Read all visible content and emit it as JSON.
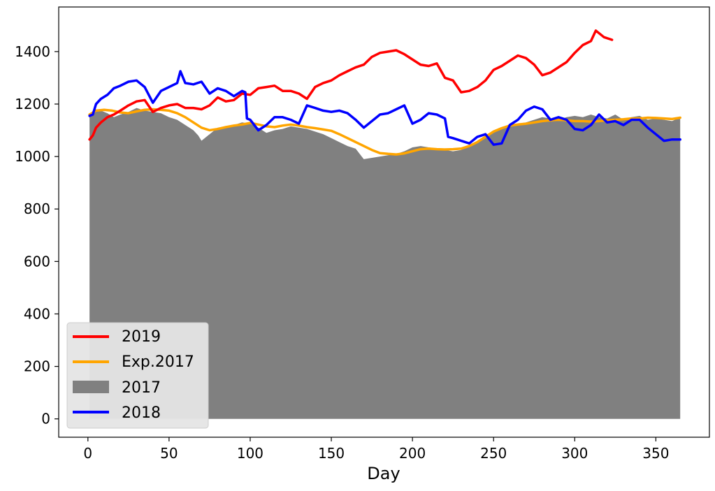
{
  "chart_data": {
    "type": "line",
    "title": "",
    "xlabel": "Day",
    "ylabel": "",
    "xlim": [
      -18,
      383
    ],
    "ylim": [
      -70,
      1570
    ],
    "x_ticks": [
      0,
      50,
      100,
      150,
      200,
      250,
      300,
      350
    ],
    "y_ticks": [
      0,
      200,
      400,
      600,
      800,
      1000,
      1200,
      1400
    ],
    "grid": false,
    "legend_position": "lower-left",
    "series": [
      {
        "name": "2017",
        "kind": "area",
        "color": "#808080",
        "x": [
          1,
          3,
          5,
          8,
          12,
          16,
          20,
          25,
          30,
          35,
          40,
          45,
          50,
          55,
          60,
          65,
          68,
          70,
          72,
          75,
          80,
          85,
          90,
          95,
          100,
          105,
          110,
          115,
          120,
          125,
          130,
          135,
          140,
          145,
          150,
          155,
          160,
          165,
          170,
          175,
          180,
          185,
          190,
          195,
          200,
          205,
          210,
          215,
          220,
          225,
          230,
          235,
          240,
          245,
          250,
          255,
          260,
          265,
          270,
          275,
          280,
          285,
          290,
          295,
          300,
          305,
          310,
          315,
          320,
          325,
          330,
          335,
          340,
          345,
          350,
          355,
          360,
          365
        ],
        "values": [
          1150,
          1165,
          1180,
          1175,
          1165,
          1150,
          1160,
          1170,
          1185,
          1175,
          1170,
          1165,
          1150,
          1140,
          1120,
          1100,
          1080,
          1060,
          1070,
          1085,
          1110,
          1115,
          1120,
          1130,
          1125,
          1110,
          1090,
          1100,
          1105,
          1115,
          1110,
          1105,
          1095,
          1085,
          1070,
          1055,
          1040,
          1030,
          990,
          995,
          1000,
          1005,
          1010,
          1020,
          1035,
          1040,
          1035,
          1030,
          1025,
          1020,
          1025,
          1040,
          1060,
          1080,
          1100,
          1110,
          1120,
          1125,
          1130,
          1140,
          1150,
          1145,
          1140,
          1150,
          1155,
          1150,
          1160,
          1150,
          1145,
          1160,
          1140,
          1150,
          1155,
          1140,
          1145,
          1140,
          1135,
          1150
        ]
      },
      {
        "name": "Exp.2017",
        "kind": "line",
        "color": "#ffa500",
        "x": [
          1,
          5,
          10,
          15,
          20,
          25,
          30,
          35,
          40,
          45,
          50,
          55,
          60,
          65,
          70,
          75,
          80,
          85,
          90,
          95,
          100,
          105,
          110,
          115,
          120,
          125,
          130,
          135,
          140,
          145,
          150,
          155,
          160,
          165,
          170,
          175,
          180,
          185,
          190,
          195,
          200,
          205,
          210,
          215,
          220,
          225,
          230,
          235,
          240,
          245,
          250,
          255,
          260,
          265,
          270,
          275,
          280,
          285,
          290,
          295,
          300,
          305,
          310,
          315,
          320,
          325,
          330,
          335,
          340,
          345,
          350,
          355,
          360,
          365
        ],
        "values": [
          1160,
          1175,
          1178,
          1175,
          1168,
          1165,
          1172,
          1178,
          1180,
          1178,
          1175,
          1165,
          1150,
          1130,
          1110,
          1100,
          1105,
          1112,
          1118,
          1122,
          1128,
          1122,
          1115,
          1112,
          1118,
          1122,
          1118,
          1112,
          1108,
          1103,
          1098,
          1085,
          1070,
          1055,
          1040,
          1025,
          1013,
          1010,
          1008,
          1012,
          1020,
          1028,
          1030,
          1028,
          1027,
          1028,
          1030,
          1040,
          1055,
          1075,
          1095,
          1108,
          1118,
          1122,
          1125,
          1130,
          1135,
          1138,
          1140,
          1138,
          1135,
          1135,
          1133,
          1135,
          1138,
          1140,
          1142,
          1145,
          1145,
          1148,
          1147,
          1145,
          1143,
          1148
        ]
      },
      {
        "name": "2019",
        "kind": "line",
        "color": "#ff0000",
        "x": [
          1,
          3,
          5,
          8,
          12,
          16,
          20,
          25,
          30,
          35,
          40,
          45,
          50,
          55,
          60,
          65,
          70,
          75,
          80,
          85,
          90,
          95,
          100,
          105,
          110,
          115,
          120,
          125,
          130,
          135,
          140,
          145,
          150,
          155,
          160,
          165,
          170,
          175,
          180,
          185,
          190,
          195,
          200,
          205,
          210,
          215,
          220,
          225,
          230,
          235,
          240,
          245,
          250,
          255,
          260,
          265,
          270,
          275,
          280,
          285,
          290,
          295,
          300,
          305,
          310,
          313,
          318,
          323
        ],
        "values": [
          1065,
          1080,
          1110,
          1130,
          1150,
          1160,
          1175,
          1195,
          1210,
          1215,
          1170,
          1185,
          1195,
          1200,
          1185,
          1185,
          1180,
          1195,
          1225,
          1210,
          1215,
          1240,
          1235,
          1260,
          1265,
          1270,
          1250,
          1250,
          1240,
          1220,
          1265,
          1280,
          1290,
          1310,
          1325,
          1340,
          1350,
          1380,
          1395,
          1400,
          1405,
          1390,
          1370,
          1350,
          1345,
          1355,
          1300,
          1290,
          1245,
          1250,
          1265,
          1290,
          1330,
          1345,
          1365,
          1385,
          1375,
          1350,
          1310,
          1320,
          1340,
          1360,
          1395,
          1425,
          1440,
          1480,
          1455,
          1445
        ]
      },
      {
        "name": "2018",
        "kind": "line",
        "color": "#0000ff",
        "x": [
          1,
          3,
          5,
          8,
          12,
          16,
          20,
          25,
          30,
          35,
          40,
          45,
          50,
          55,
          57,
          60,
          65,
          70,
          75,
          80,
          85,
          90,
          95,
          97,
          98,
          100,
          105,
          110,
          115,
          120,
          125,
          130,
          135,
          140,
          145,
          150,
          155,
          160,
          165,
          170,
          175,
          180,
          185,
          190,
          195,
          200,
          205,
          210,
          215,
          220,
          222,
          225,
          230,
          235,
          240,
          245,
          250,
          255,
          260,
          265,
          270,
          275,
          280,
          285,
          290,
          295,
          300,
          305,
          310,
          315,
          320,
          325,
          330,
          335,
          340,
          345,
          350,
          355,
          360,
          365
        ],
        "values": [
          1155,
          1160,
          1200,
          1220,
          1235,
          1260,
          1270,
          1285,
          1290,
          1265,
          1205,
          1250,
          1265,
          1280,
          1325,
          1280,
          1275,
          1285,
          1240,
          1260,
          1250,
          1230,
          1250,
          1245,
          1145,
          1140,
          1100,
          1120,
          1150,
          1150,
          1140,
          1125,
          1195,
          1185,
          1175,
          1170,
          1175,
          1165,
          1140,
          1110,
          1135,
          1160,
          1165,
          1180,
          1195,
          1125,
          1140,
          1165,
          1160,
          1145,
          1075,
          1070,
          1060,
          1050,
          1075,
          1085,
          1045,
          1050,
          1120,
          1140,
          1175,
          1190,
          1180,
          1140,
          1150,
          1140,
          1105,
          1100,
          1120,
          1160,
          1130,
          1135,
          1120,
          1140,
          1140,
          1110,
          1085,
          1060,
          1065,
          1065
        ]
      }
    ],
    "legend": [
      "2019",
      "Exp.2017",
      "2017",
      "2018"
    ]
  }
}
